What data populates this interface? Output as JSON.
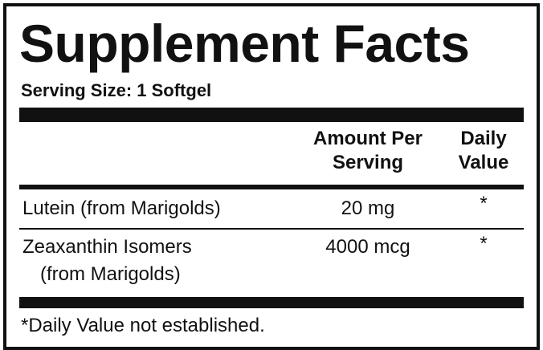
{
  "title": "Supplement Facts",
  "serving_size": "Serving Size: 1 Softgel",
  "headers": {
    "amount": "Amount Per Serving",
    "dv": "Daily Value"
  },
  "rows": [
    {
      "name": "Lutein (from Marigolds)",
      "name2": "",
      "amount": "20 mg",
      "dv": "*"
    },
    {
      "name": "Zeaxanthin Isomers",
      "name2": "(from Marigolds)",
      "amount": "4000 mcg",
      "dv": "*"
    }
  ],
  "footnote": "*Daily Value not established."
}
